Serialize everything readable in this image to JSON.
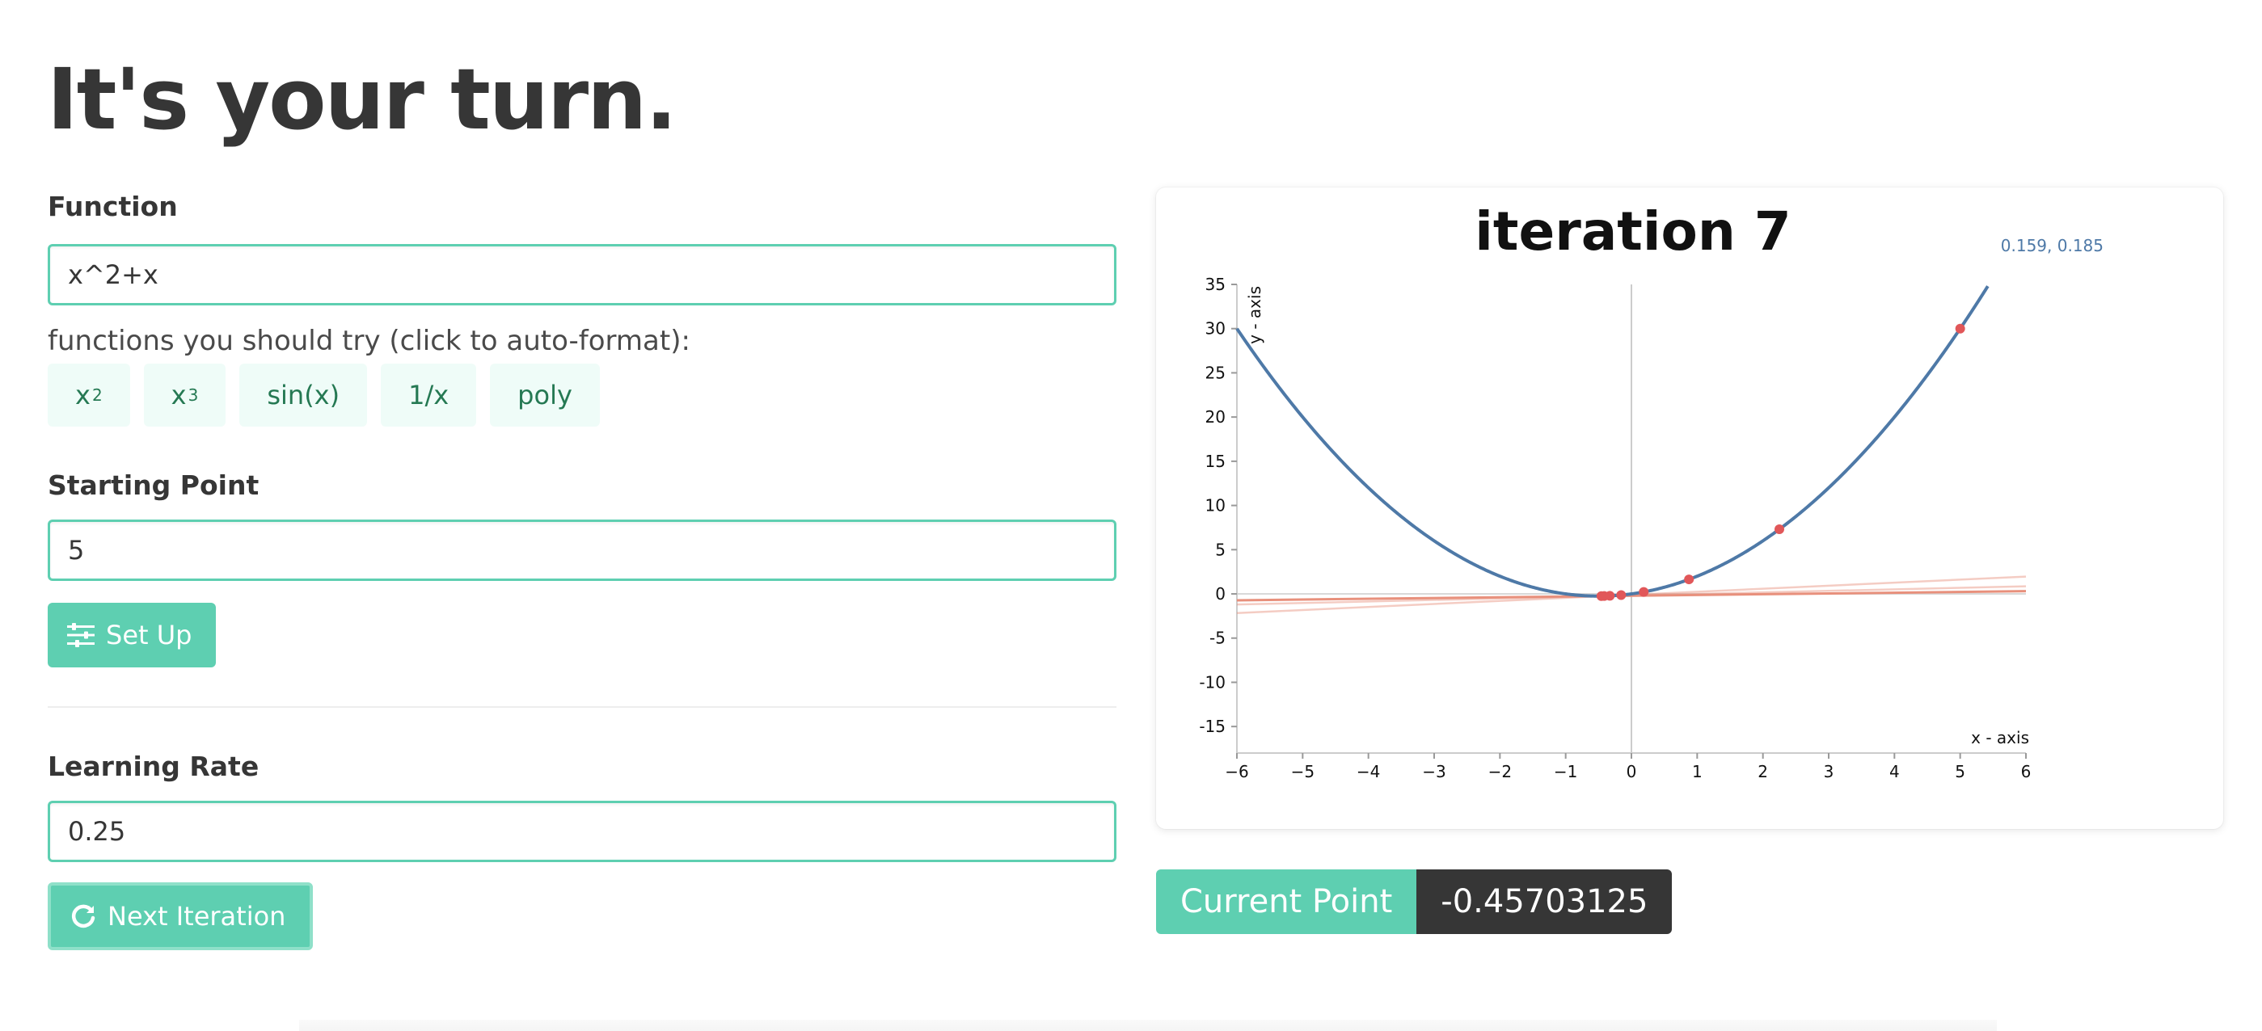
{
  "heading": "It's your turn.",
  "function_field": {
    "label": "Function",
    "value": "x^2+x"
  },
  "suggestions": {
    "text": "functions you should try (click to auto-format):",
    "chips": [
      {
        "base": "x",
        "sup": "2"
      },
      {
        "base": "x",
        "sup": "3"
      },
      {
        "base": "sin(x)",
        "sup": ""
      },
      {
        "base": "1/x",
        "sup": ""
      },
      {
        "base": "poly",
        "sup": ""
      }
    ]
  },
  "starting_point": {
    "label": "Starting Point",
    "value": "5"
  },
  "setup_button": {
    "label": "Set Up",
    "icon": "sliders-icon"
  },
  "learning_rate": {
    "label": "Learning Rate",
    "value": "0.25"
  },
  "next_button": {
    "label": "Next Iteration",
    "icon": "redo-icon"
  },
  "current_point": {
    "label": "Current Point",
    "value": "-0.45703125"
  },
  "colors": {
    "accent": "#5ecfb1",
    "curve": "#4e79a7",
    "points": "#e15759",
    "tangent": "#e8907c",
    "dark": "#363636"
  },
  "chart_data": {
    "type": "line",
    "title": "iteration 7",
    "cursor_readout": "0.159, 0.185",
    "xlabel": "x - axis",
    "ylabel": "y - axis",
    "xlim": [
      -6,
      6
    ],
    "ylim": [
      -18,
      35
    ],
    "x_ticks": [
      -6,
      -5,
      -4,
      -3,
      -2,
      -1,
      0,
      1,
      2,
      3,
      4,
      5,
      6
    ],
    "y_ticks": [
      35,
      30,
      25,
      20,
      15,
      10,
      5,
      0,
      -5,
      -10,
      -15
    ],
    "function": "x^2+x",
    "iteration_points": [
      {
        "x": 5,
        "y": 30
      },
      {
        "x": 2.25,
        "y": 7.3125
      },
      {
        "x": 0.875,
        "y": 1.640625
      },
      {
        "x": 0.1875,
        "y": 0.22265625
      },
      {
        "x": -0.15625,
        "y": -0.1318359375
      },
      {
        "x": -0.328125,
        "y": -0.220458984375
      },
      {
        "x": -0.4140625,
        "y": -0.24261474609375
      },
      {
        "x": -0.45703125,
        "y": -0.2481536865234375
      }
    ],
    "tangent_at_current": {
      "x": -0.45703125,
      "slope": 0.0859375
    },
    "grid": false
  }
}
